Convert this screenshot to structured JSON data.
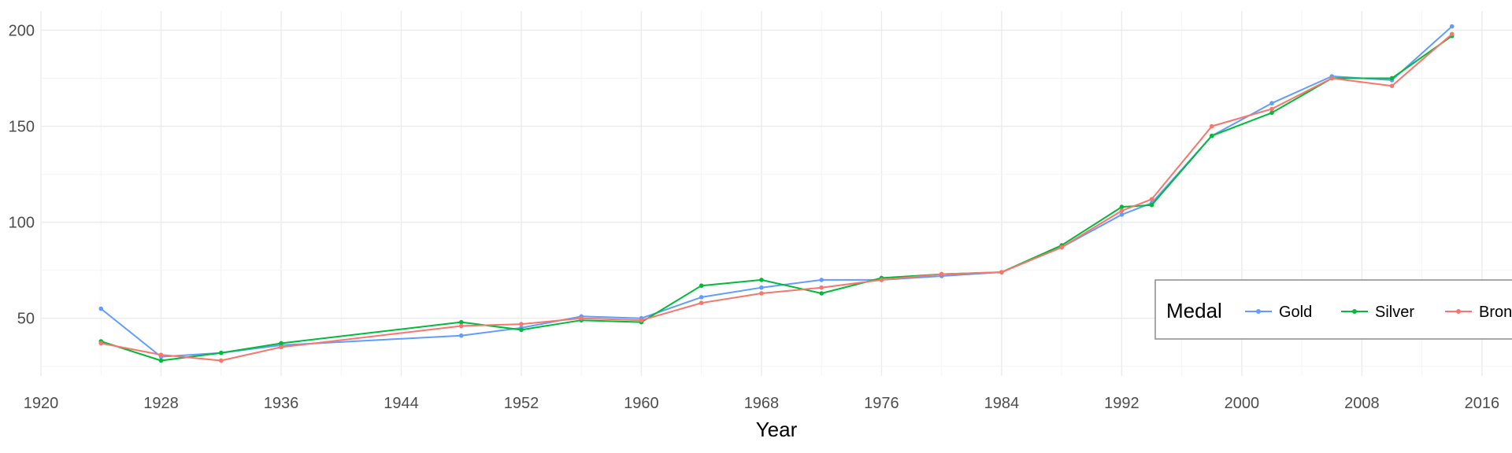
{
  "chart_data": {
    "type": "line",
    "title": "",
    "xlabel": "Year",
    "ylabel": "",
    "xlim": [
      1920,
      2018
    ],
    "ylim": [
      20,
      210
    ],
    "x_ticks": [
      1920,
      1928,
      1936,
      1944,
      1952,
      1960,
      1968,
      1976,
      1984,
      1992,
      2000,
      2008,
      2016
    ],
    "x_tick_labels": [
      "1920",
      "1928",
      "1936",
      "1944",
      "1952",
      "1960",
      "1968",
      "1976",
      "1984",
      "1992",
      "2000",
      "2008",
      "2016"
    ],
    "y_ticks": [
      50,
      100,
      150,
      200
    ],
    "y_tick_labels": [
      "50",
      "100",
      "150",
      "200"
    ],
    "grid": true,
    "legend": {
      "title": "Medal",
      "placement": "bottom-right, horizontal"
    },
    "x": [
      1924,
      1928,
      1932,
      1936,
      1948,
      1952,
      1956,
      1960,
      1964,
      1968,
      1972,
      1976,
      1980,
      1984,
      1988,
      1992,
      1994,
      1998,
      2002,
      2006,
      2010,
      2014
    ],
    "series": [
      {
        "name": "Gold",
        "color": "#619CFF",
        "values": [
          55,
          30,
          32,
          36,
          41,
          45,
          51,
          50,
          61,
          66,
          70,
          70,
          72,
          74,
          87,
          104,
          110,
          145,
          162,
          176,
          174,
          202
        ]
      },
      {
        "name": "Silver",
        "color": "#00BA38",
        "values": [
          38,
          28,
          32,
          37,
          48,
          44,
          49,
          48,
          67,
          70,
          63,
          71,
          73,
          74,
          88,
          108,
          109,
          145,
          157,
          175,
          175,
          197
        ]
      },
      {
        "name": "Bronze",
        "color": "#F8766D",
        "values": [
          37,
          31,
          28,
          35,
          46,
          47,
          50,
          49,
          58,
          63,
          66,
          70,
          73,
          74,
          87,
          106,
          112,
          150,
          159,
          175,
          171,
          198
        ]
      }
    ]
  }
}
